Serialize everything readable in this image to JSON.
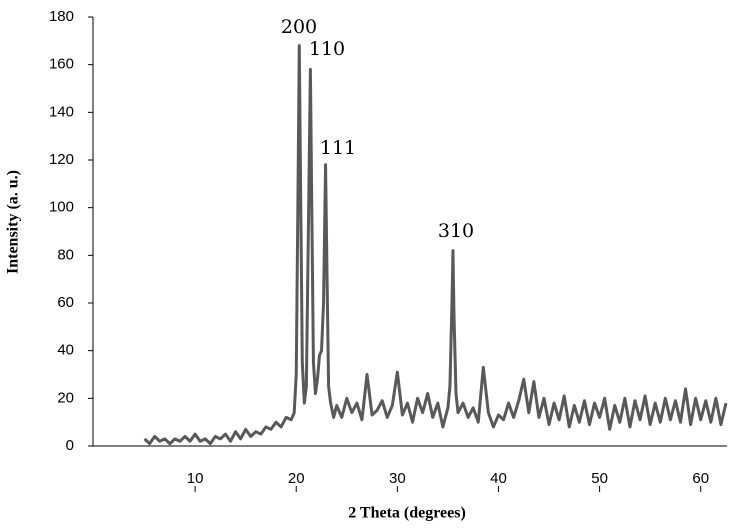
{
  "chart_data": {
    "type": "line",
    "x_label": "2 Theta (degrees)",
    "y_label": "Intensity (a. u.)",
    "annotations": [
      "200",
      "110",
      "111",
      "310"
    ],
    "xlim": [
      0,
      62.6
    ],
    "ylim": [
      0,
      180
    ],
    "xticks": [
      10,
      20,
      30,
      40,
      50,
      60
    ],
    "yticks": [
      0,
      20,
      40,
      60,
      80,
      100,
      120,
      140,
      160,
      180
    ],
    "grid": false,
    "x": [
      5,
      5.5,
      6,
      6.5,
      7,
      7.5,
      8,
      8.5,
      9,
      9.5,
      10,
      10.5,
      11,
      11.5,
      12,
      12.5,
      13,
      13.5,
      14,
      14.5,
      15,
      15.5,
      16,
      16.5,
      17,
      17.5,
      18,
      18.5,
      19,
      19.5,
      19.8,
      20.0,
      20.15,
      20.3,
      20.45,
      20.6,
      20.8,
      21.0,
      21.2,
      21.4,
      21.55,
      21.7,
      21.9,
      22.1,
      22.3,
      22.5,
      22.7,
      22.9,
      23.05,
      23.2,
      23.4,
      23.7,
      24,
      24.5,
      25,
      25.5,
      26,
      26.5,
      27,
      27.5,
      28,
      28.5,
      29,
      29.5,
      30,
      30.5,
      31,
      31.5,
      32,
      32.5,
      33,
      33.5,
      34,
      34.5,
      35,
      35.2,
      35.4,
      35.5,
      35.6,
      35.8,
      36,
      36.5,
      37,
      37.5,
      38,
      38.5,
      39,
      39.5,
      40,
      40.5,
      41,
      41.5,
      42,
      42.5,
      43,
      43.5,
      44,
      44.5,
      45,
      45.5,
      46,
      46.5,
      47,
      47.5,
      48,
      48.5,
      49,
      49.5,
      50,
      50.5,
      51,
      51.5,
      52,
      52.5,
      53,
      53.5,
      54,
      54.5,
      55,
      55.5,
      56,
      56.5,
      57,
      57.5,
      58,
      58.5,
      59,
      59.5,
      60,
      60.5,
      61,
      61.5,
      62,
      62.5
    ],
    "series": [
      {
        "color": "#595959",
        "values": [
          3,
          1,
          4,
          2,
          3,
          1,
          3,
          2,
          4,
          2,
          5,
          2,
          3,
          1,
          4,
          3,
          5,
          2,
          6,
          3,
          7,
          4,
          6,
          5,
          8,
          7,
          10,
          8,
          12,
          11,
          14,
          30,
          95,
          168,
          100,
          35,
          18,
          25,
          90,
          158,
          95,
          35,
          22,
          28,
          38,
          40,
          60,
          118,
          70,
          25,
          18,
          12,
          17,
          12,
          20,
          14,
          18,
          11,
          30,
          13,
          15,
          19,
          12,
          17,
          31,
          13,
          18,
          10,
          20,
          14,
          22,
          12,
          18,
          8,
          16,
          25,
          60,
          82,
          55,
          22,
          14,
          18,
          12,
          16,
          10,
          33,
          14,
          8,
          13,
          11,
          18,
          12,
          19,
          28,
          14,
          27,
          12,
          20,
          9,
          18,
          11,
          21,
          8,
          17,
          10,
          19,
          9,
          18,
          12,
          20,
          7,
          17,
          10,
          20,
          8,
          19,
          11,
          21,
          9,
          18,
          10,
          20,
          11,
          19,
          10,
          24,
          9,
          20,
          11,
          19,
          10,
          20,
          9,
          18
        ]
      }
    ]
  }
}
